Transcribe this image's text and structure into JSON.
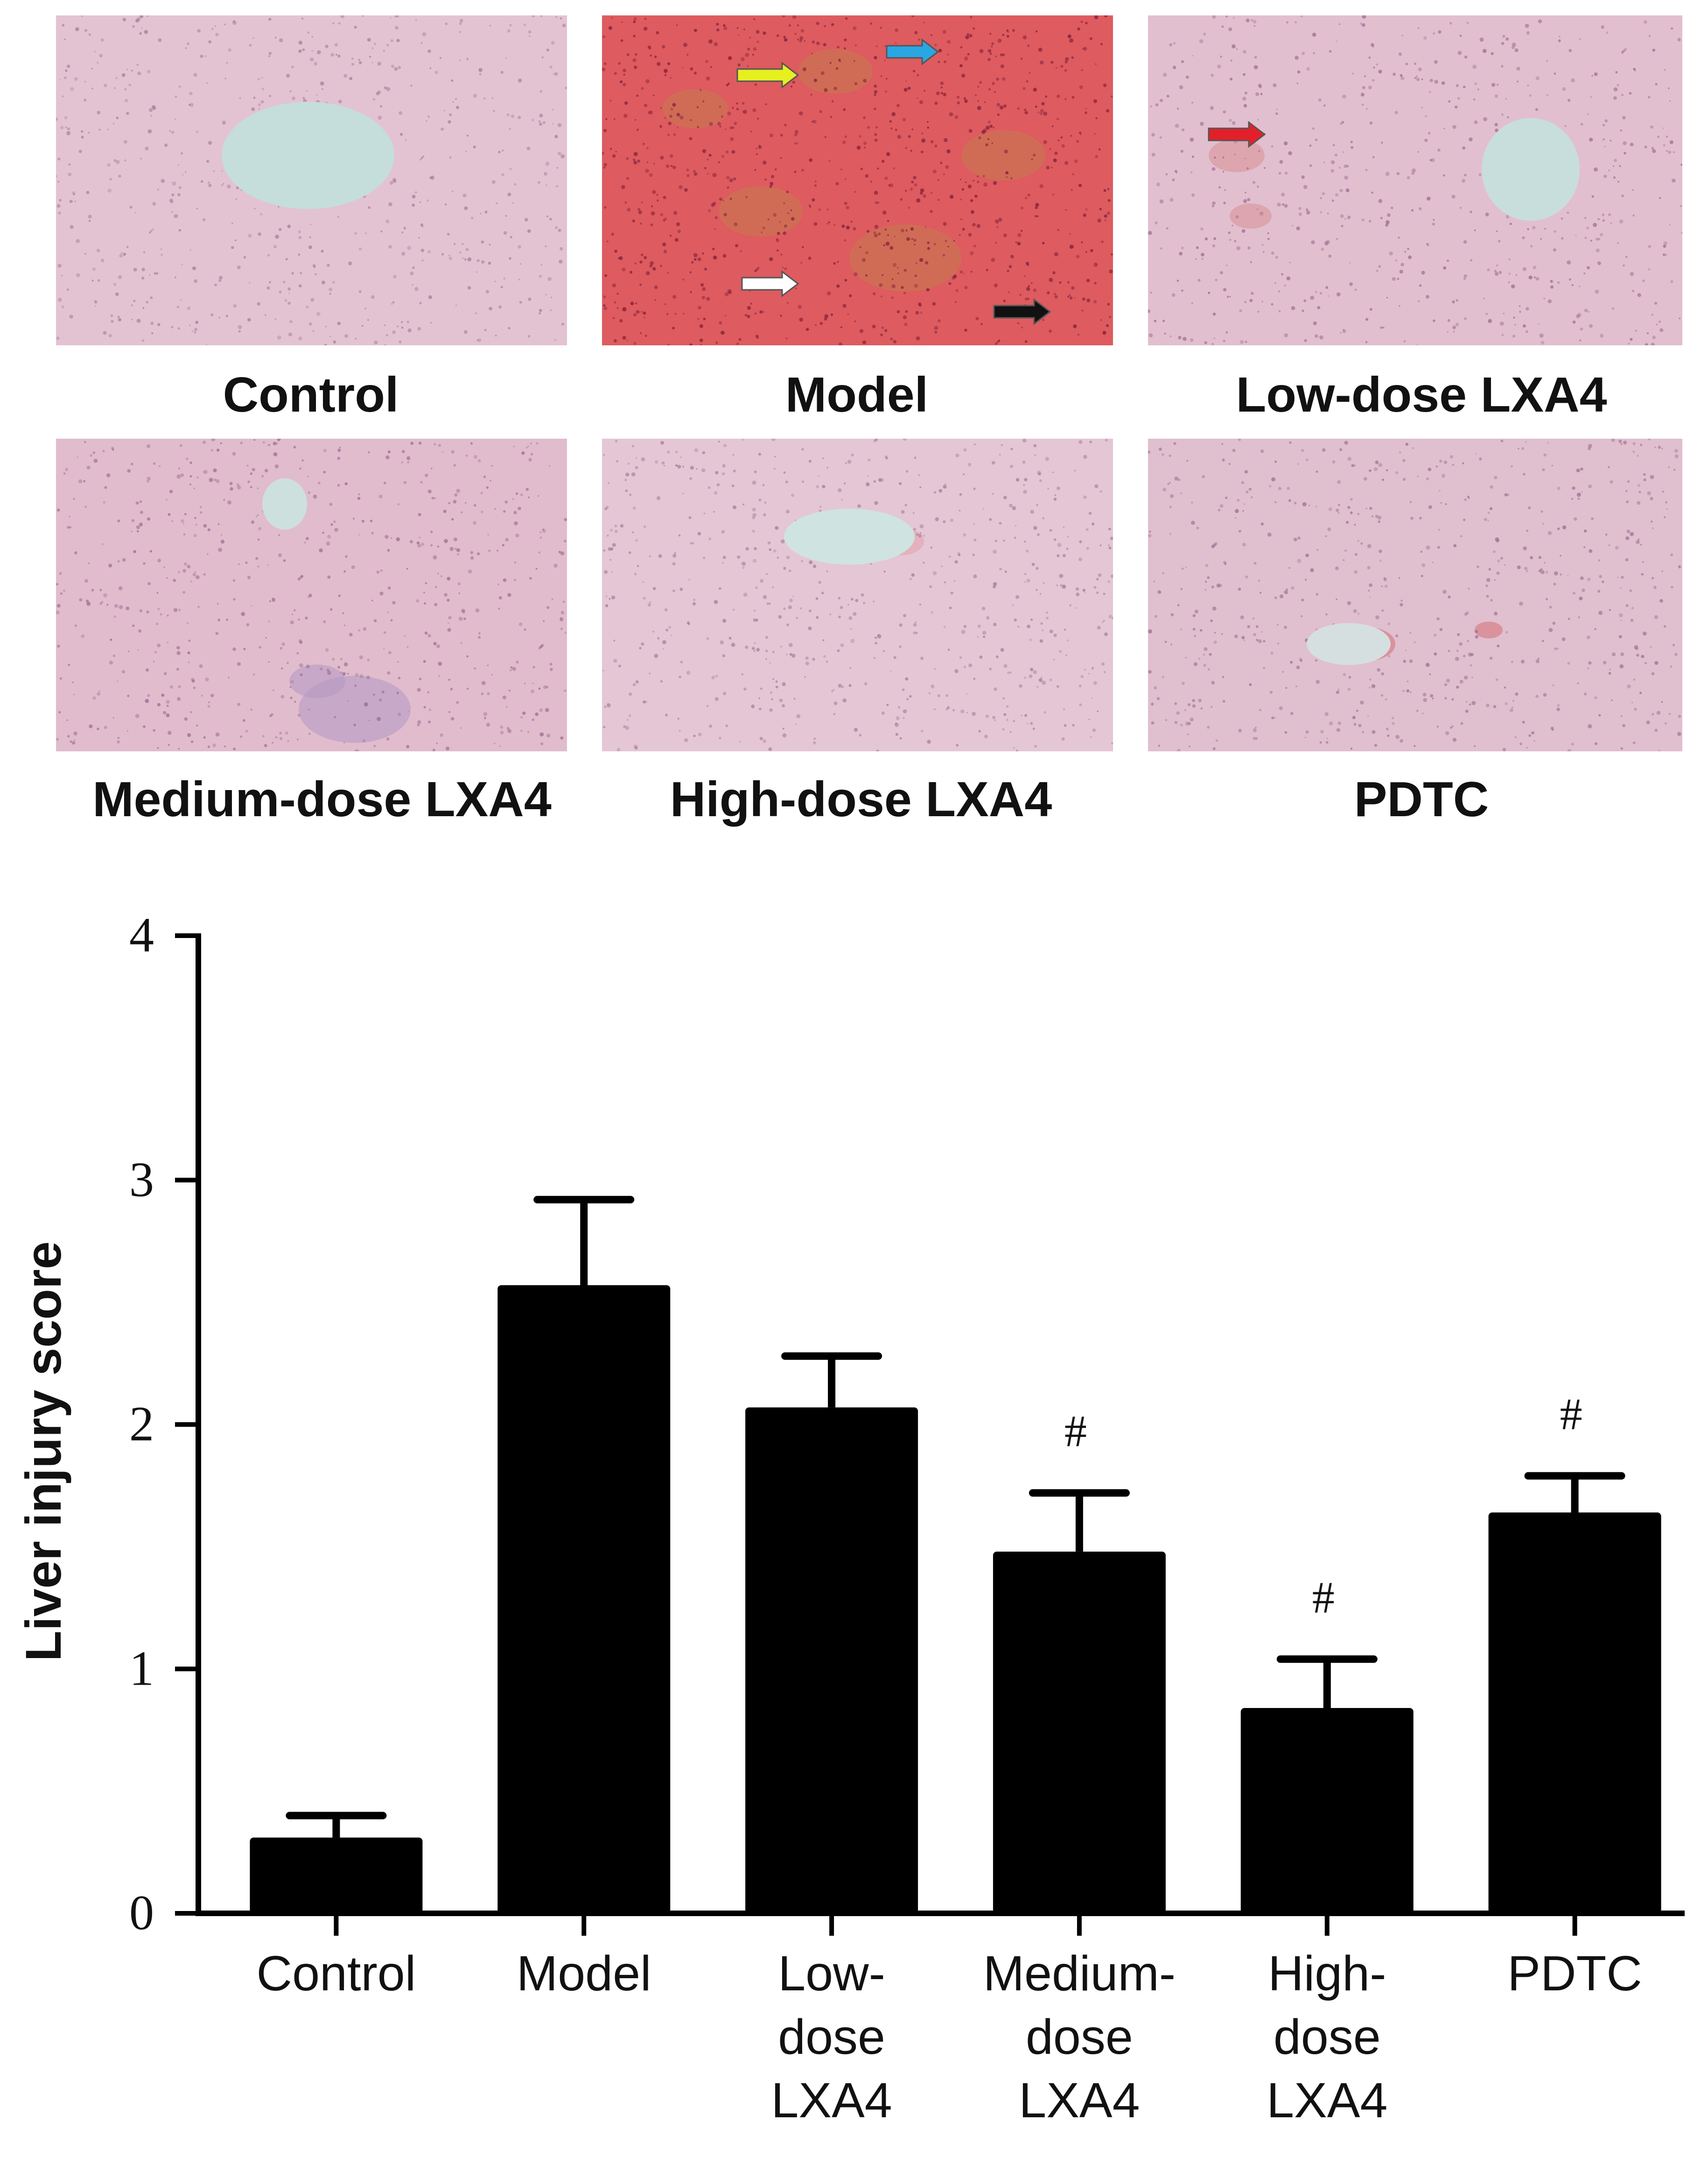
{
  "panels": [
    {
      "label": "Control",
      "tissue": "#e3c3d1",
      "dots": "#a47b97",
      "vessel": "#c5dddb",
      "lesion": ""
    },
    {
      "label": "Model",
      "tissue": "#de5b5f",
      "dots": "#7a1c38",
      "vessel": "",
      "lesion": "#c47a4e"
    },
    {
      "label": "Low-dose LXA4",
      "tissue": "#e2bfcf",
      "dots": "#9b6a8f",
      "vessel": "#c8dedc",
      "lesion": "#d98f93"
    },
    {
      "label": "Medium-dose LXA4",
      "tissue": "#e0bccd",
      "dots": "#9a6a90",
      "vessel": "#cde0de",
      "lesion": "#b597c4"
    },
    {
      "label": "High-dose LXA4",
      "tissue": "#e5c6d4",
      "dots": "#a27a9a",
      "vessel": "#cfe3e1",
      "lesion": "#e2a3ac"
    },
    {
      "label": "PDTC",
      "tissue": "#e0bfcf",
      "dots": "#9d6d92",
      "vessel": "#d5dfdf",
      "lesion": "#d66d74"
    }
  ],
  "arrows": [
    {
      "color": "#e6f01f"
    },
    {
      "color": "#2aa6e3"
    },
    {
      "color": "#ffffff"
    },
    {
      "color": "#111111"
    },
    {
      "color": "#e3202a"
    }
  ],
  "chart_data": {
    "type": "bar",
    "categories": [
      "Control",
      "Model",
      "Low-dose LXA4",
      "Medium-dose LXA4",
      "High-dose LXA4",
      "PDTC"
    ],
    "category_lines": [
      [
        "Control"
      ],
      [
        "Model"
      ],
      [
        "Low-",
        "dose",
        "LXA4"
      ],
      [
        "Medium-",
        "dose",
        "LXA4"
      ],
      [
        "High-",
        "dose",
        "LXA4"
      ],
      [
        "PDTC"
      ]
    ],
    "values": [
      0.31,
      2.57,
      2.07,
      1.48,
      0.84,
      1.64
    ],
    "errors": [
      0.09,
      0.35,
      0.21,
      0.24,
      0.2,
      0.15
    ],
    "significance": [
      "",
      "",
      "",
      "#",
      "#",
      "#"
    ],
    "ylabel": "Liver injury score",
    "ylim": [
      0,
      4
    ],
    "yticks": [
      0,
      1,
      2,
      3,
      4
    ],
    "bar_color": "#000000",
    "grid": false
  }
}
